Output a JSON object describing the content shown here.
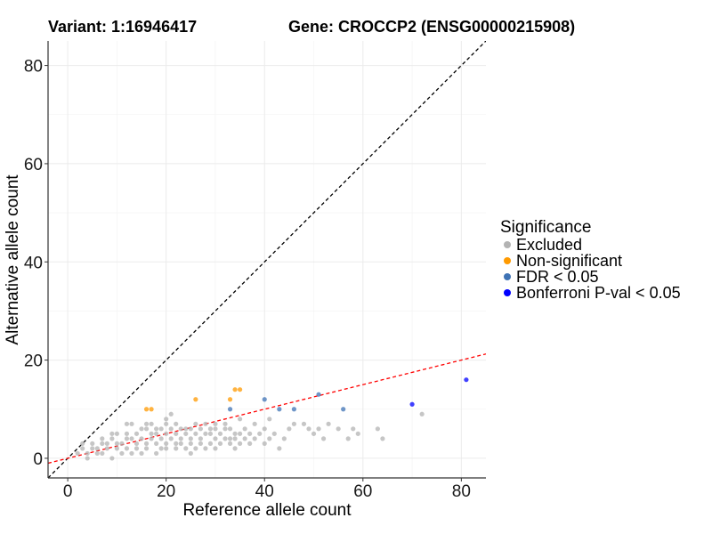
{
  "titles": {
    "left": "Variant: 1:16946417",
    "right": "Gene: CROCCP2 (ENSG00000215908)"
  },
  "legend": {
    "title": "Significance",
    "items": [
      {
        "label": "Excluded",
        "color": "#b3b3b3"
      },
      {
        "label": "Non-significant",
        "color": "#ff9a00"
      },
      {
        "label": "FDR < 0.05",
        "color": "#3f73b5"
      },
      {
        "label": "Bonferroni P-val < 0.05",
        "color": "#0000ff"
      }
    ]
  },
  "chart_data": {
    "type": "scatter",
    "xlabel": "Reference allele count",
    "ylabel": "Alternative allele count",
    "xlim": [
      -4,
      85
    ],
    "ylim": [
      -4,
      85
    ],
    "xticks": [
      0,
      20,
      40,
      60,
      80
    ],
    "yticks": [
      0,
      20,
      40,
      60,
      80
    ],
    "grid": true,
    "legend_position": "right",
    "reference_lines": [
      {
        "name": "y = x",
        "slope": 1,
        "intercept": 0,
        "color": "#000000",
        "dashed": true
      },
      {
        "name": "fit",
        "slope": 0.25,
        "intercept": 0,
        "color": "#ff0000",
        "dashed": true
      }
    ],
    "series": [
      {
        "name": "Excluded",
        "color": "#b3b3b3",
        "points": [
          [
            2,
            1
          ],
          [
            3,
            2
          ],
          [
            3,
            3
          ],
          [
            4,
            1
          ],
          [
            4,
            0
          ],
          [
            5,
            2
          ],
          [
            5,
            3
          ],
          [
            6,
            1
          ],
          [
            6,
            2
          ],
          [
            7,
            1
          ],
          [
            7,
            3
          ],
          [
            7,
            4
          ],
          [
            8,
            2
          ],
          [
            8,
            3
          ],
          [
            9,
            0
          ],
          [
            9,
            4
          ],
          [
            9,
            5
          ],
          [
            10,
            2
          ],
          [
            10,
            3
          ],
          [
            10,
            5
          ],
          [
            11,
            1
          ],
          [
            11,
            3
          ],
          [
            12,
            2
          ],
          [
            12,
            4
          ],
          [
            12,
            5
          ],
          [
            12,
            7
          ],
          [
            13,
            1
          ],
          [
            13,
            4
          ],
          [
            13,
            7
          ],
          [
            14,
            2
          ],
          [
            14,
            3
          ],
          [
            14,
            5
          ],
          [
            15,
            1
          ],
          [
            15,
            4
          ],
          [
            15,
            6
          ],
          [
            16,
            2
          ],
          [
            16,
            3
          ],
          [
            16,
            6
          ],
          [
            16,
            7
          ],
          [
            17,
            4
          ],
          [
            17,
            5
          ],
          [
            17,
            7
          ],
          [
            18,
            1
          ],
          [
            18,
            3
          ],
          [
            18,
            5
          ],
          [
            18,
            6
          ],
          [
            19,
            2
          ],
          [
            19,
            4
          ],
          [
            19,
            6
          ],
          [
            20,
            2
          ],
          [
            20,
            3
          ],
          [
            20,
            5
          ],
          [
            20,
            7
          ],
          [
            20,
            8
          ],
          [
            21,
            4
          ],
          [
            21,
            6
          ],
          [
            21,
            9
          ],
          [
            22,
            2
          ],
          [
            22,
            3
          ],
          [
            22,
            5
          ],
          [
            22,
            7
          ],
          [
            23,
            3
          ],
          [
            23,
            4
          ],
          [
            23,
            6
          ],
          [
            24,
            2
          ],
          [
            24,
            5
          ],
          [
            24,
            6
          ],
          [
            25,
            1
          ],
          [
            25,
            3
          ],
          [
            25,
            4
          ],
          [
            25,
            6
          ],
          [
            26,
            2
          ],
          [
            26,
            5
          ],
          [
            26,
            7
          ],
          [
            27,
            3
          ],
          [
            27,
            4
          ],
          [
            27,
            6
          ],
          [
            28,
            2
          ],
          [
            28,
            5
          ],
          [
            28,
            7
          ],
          [
            29,
            3
          ],
          [
            29,
            5
          ],
          [
            29,
            6
          ],
          [
            30,
            2
          ],
          [
            30,
            4
          ],
          [
            30,
            6
          ],
          [
            30,
            7
          ],
          [
            31,
            3
          ],
          [
            31,
            5
          ],
          [
            32,
            4
          ],
          [
            32,
            6
          ],
          [
            32,
            7
          ],
          [
            33,
            3
          ],
          [
            33,
            4
          ],
          [
            33,
            6
          ],
          [
            34,
            2
          ],
          [
            34,
            4
          ],
          [
            34,
            5
          ],
          [
            35,
            3
          ],
          [
            35,
            5
          ],
          [
            35,
            8
          ],
          [
            36,
            4
          ],
          [
            36,
            6
          ],
          [
            37,
            3
          ],
          [
            37,
            5
          ],
          [
            38,
            4
          ],
          [
            38,
            7
          ],
          [
            39,
            5
          ],
          [
            40,
            3
          ],
          [
            40,
            6
          ],
          [
            41,
            4
          ],
          [
            41,
            8
          ],
          [
            42,
            5
          ],
          [
            43,
            2
          ],
          [
            44,
            4
          ],
          [
            45,
            6
          ],
          [
            46,
            7
          ],
          [
            48,
            7
          ],
          [
            49,
            6
          ],
          [
            50,
            5
          ],
          [
            51,
            6
          ],
          [
            52,
            4
          ],
          [
            53,
            7
          ],
          [
            55,
            6
          ],
          [
            57,
            4
          ],
          [
            58,
            6
          ],
          [
            59,
            5
          ],
          [
            63,
            6
          ],
          [
            64,
            4
          ],
          [
            72,
            9
          ]
        ]
      },
      {
        "name": "Non-significant",
        "color": "#ff9a00",
        "points": [
          [
            16,
            10
          ],
          [
            17,
            10
          ],
          [
            26,
            12
          ],
          [
            33,
            12
          ],
          [
            34,
            14
          ],
          [
            35,
            14
          ]
        ]
      },
      {
        "name": "FDR < 0.05",
        "color": "#3f73b5",
        "points": [
          [
            33,
            10
          ],
          [
            40,
            12
          ],
          [
            43,
            10
          ],
          [
            46,
            10
          ],
          [
            51,
            13
          ],
          [
            56,
            10
          ]
        ]
      },
      {
        "name": "Bonferroni P-val < 0.05",
        "color": "#0000ff",
        "points": [
          [
            70,
            11
          ],
          [
            81,
            16
          ]
        ]
      }
    ]
  }
}
